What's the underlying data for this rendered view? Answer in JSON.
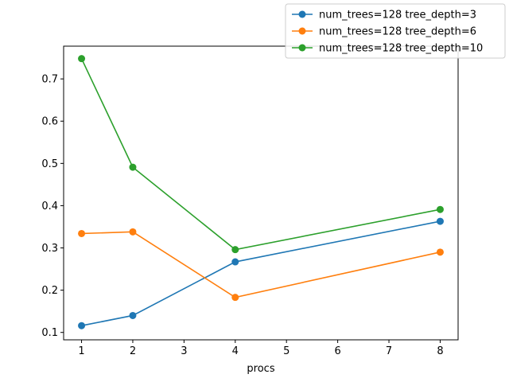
{
  "chart_data": {
    "type": "line",
    "title": "",
    "xlabel": "procs",
    "ylabel": "",
    "xlim": [
      0.65,
      8.35
    ],
    "ylim": [
      0.0825,
      0.7775
    ],
    "xticks": [
      1,
      2,
      3,
      4,
      5,
      6,
      7,
      8
    ],
    "yticks": [
      0.1,
      0.2,
      0.3,
      0.4,
      0.5,
      0.6,
      0.7
    ],
    "grid": false,
    "legend_position": "top-right",
    "x": [
      1,
      2,
      4,
      8
    ],
    "series": [
      {
        "name": "num_trees=128 tree_depth=3",
        "color": "#1f77b4",
        "marker": "circle",
        "values": [
          0.116,
          0.14,
          0.267,
          0.363
        ]
      },
      {
        "name": "num_trees=128 tree_depth=6",
        "color": "#ff7f0e",
        "marker": "circle",
        "values": [
          0.334,
          0.338,
          0.183,
          0.29
        ]
      },
      {
        "name": "num_trees=128 tree_depth=10",
        "color": "#2ca02c",
        "marker": "circle",
        "values": [
          0.748,
          0.491,
          0.296,
          0.391
        ]
      }
    ]
  }
}
